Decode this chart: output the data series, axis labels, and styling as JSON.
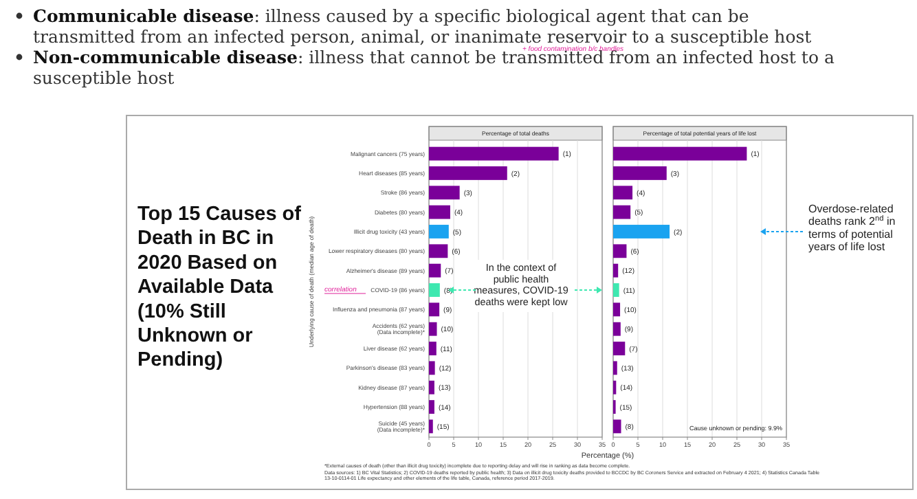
{
  "chart_data": [
    {
      "type": "bar",
      "orientation": "horizontal",
      "title": "Top 15 Causes of Death in BC in 2020 Based on Available Data (10% Still Unknown or Pending)",
      "subtitle": "Percentage of total deaths",
      "xlabel": "Percentage (%)",
      "ylabel": "Underlying cause of death (median age of death)",
      "categories": [
        "Malignant cancers (75 years)",
        "Heart diseases (85 years)",
        "Stroke (86 years)",
        "Diabetes (80 years)",
        "Illicit drug toxicity (43 years)",
        "Lower respiratory diseases (80 years)",
        "Alzheimer's disease (89 years)",
        "COVID-19 (86 years)",
        "Influenza and pneumonia (87 years)",
        "Accidents (62 years)\n(Data incomplete)*",
        "Liver disease (62 years)",
        "Parkinson's disease (83 years)",
        "Kidney disease (87 years)",
        "Hypertension (88 years)",
        "Suicide (45 years)\n(Data incomplete)*"
      ],
      "values": [
        26.2,
        15.8,
        6.2,
        4.3,
        4.0,
        3.8,
        2.4,
        2.2,
        2.1,
        1.6,
        1.5,
        1.2,
        1.1,
        1.1,
        0.8
      ],
      "colors": [
        "#7a0099",
        "#7a0099",
        "#7a0099",
        "#7a0099",
        "#1aa3f0",
        "#7a0099",
        "#7a0099",
        "#3ee8b0",
        "#7a0099",
        "#7a0099",
        "#7a0099",
        "#7a0099",
        "#7a0099",
        "#7a0099",
        "#7a0099"
      ],
      "xlim": [
        0,
        35
      ],
      "xticks": [
        0,
        5,
        10,
        15,
        20,
        25,
        30,
        35
      ],
      "grid": "x",
      "annotations": [
        "Communicable disease: illness caused by a specific biological agent that can be transmitted from an infected person, animal, or inanimate reservoir to a susceptible host",
        "Non-communicable disease: illness that cannot be transmitted from an infected host to a susceptible host",
        "+ food contamination b/c handles",
        "correlation",
        "In the context of public health measures, COVID-19 deaths were kept low",
        "*External causes of death (other than illicit drug toxicity) incomplete due to reporting delay and will rise in ranking as data become complete.",
        "Data sources: 1) BC Vital Statistics; 2) COVID-19 deaths reported by public health; 3) Data on illicit drug toxicity deaths provided to BCCDC by BC Coroners Service and extracted on February 4 2021; 4) Statistics Canada Table 13-10-0114-01 Life expectancy and other elements of the life table, Canada, reference period 2017-2019.",
        {
          "text": "(1)",
          "x": 26.2,
          "y": "Malignant cancers (75 years)"
        },
        {
          "text": "(2)",
          "x": 15.8,
          "y": "Heart diseases (85 years)"
        },
        {
          "text": "(3)",
          "x": 6.2,
          "y": "Stroke (86 years)"
        },
        {
          "text": "(4)",
          "x": 4.3,
          "y": "Diabetes (80 years)"
        },
        {
          "text": "(5)",
          "x": 4.0,
          "y": "Illicit drug toxicity (43 years)"
        },
        {
          "text": "(6)",
          "x": 3.8,
          "y": "Lower respiratory diseases (80 years)"
        },
        {
          "text": "(7)",
          "x": 2.4,
          "y": "Alzheimer's disease (89 years)"
        },
        {
          "text": "(8)",
          "x": 2.2,
          "y": "COVID-19 (86 years)"
        },
        {
          "text": "(9)",
          "x": 2.1,
          "y": "Influenza and pneumonia (87 years)"
        },
        {
          "text": "(10)",
          "x": 1.6,
          "y": "Accidents (62 years)\n(Data incomplete)*"
        },
        {
          "text": "(11)",
          "x": 1.5,
          "y": "Liver disease (62 years)"
        },
        {
          "text": "(12)",
          "x": 1.2,
          "y": "Parkinson's disease (83 years)"
        },
        {
          "text": "(13)",
          "x": 1.1,
          "y": "Kidney disease (87 years)"
        },
        {
          "text": "(14)",
          "x": 1.1,
          "y": "Hypertension (88 years)"
        },
        {
          "text": "(15)",
          "x": 0.8,
          "y": "Suicide (45 years)\n(Data incomplete)*"
        }
      ]
    },
    {
      "type": "bar",
      "orientation": "horizontal",
      "subtitle": "Percentage of total potential years of life lost",
      "tick_labels": "x",
      "categories": [
        "Malignant cancers (75 years)",
        "Heart diseases (85 years)",
        "Stroke (86 years)",
        "Diabetes (80 years)",
        "Illicit drug toxicity (43 years)",
        "Lower respiratory diseases (80 years)",
        "Alzheimer's disease (89 years)",
        "COVID-19 (86 years)",
        "Influenza and pneumonia (87 years)",
        "Accidents (62 years)\n(Data incomplete)*",
        "Liver disease (62 years)",
        "Parkinson's disease (83 years)",
        "Kidney disease (87 years)",
        "Hypertension (88 years)",
        "Suicide (45 years)\n(Data incomplete)*"
      ],
      "values": [
        27.0,
        10.8,
        3.9,
        3.5,
        11.4,
        2.7,
        1.0,
        1.2,
        1.4,
        1.5,
        2.4,
        0.8,
        0.6,
        0.5,
        1.6
      ],
      "colors": [
        "#7a0099",
        "#7a0099",
        "#7a0099",
        "#7a0099",
        "#1aa3f0",
        "#7a0099",
        "#7a0099",
        "#3ee8b0",
        "#7a0099",
        "#7a0099",
        "#7a0099",
        "#7a0099",
        "#7a0099",
        "#7a0099",
        "#7a0099"
      ],
      "xlim": [
        0,
        35
      ],
      "xticks": [
        0,
        5,
        10,
        15,
        20,
        25,
        30,
        35
      ],
      "grid": "x",
      "annotations": [
        "Overdose-related deaths rank 2$^{nd}$ in terms of potential years of life lost",
        "Cause unknown or pending: 9.9%",
        {
          "text": "(1)",
          "x": 27.0,
          "y": "Malignant cancers (75 years)"
        },
        {
          "text": "(3)",
          "x": 10.8,
          "y": "Heart diseases (85 years)"
        },
        {
          "text": "(4)",
          "x": 3.9,
          "y": "Stroke (86 years)"
        },
        {
          "text": "(5)",
          "x": 3.5,
          "y": "Diabetes (80 years)"
        },
        {
          "text": "(2)",
          "x": 11.4,
          "y": "Illicit drug toxicity (43 years)"
        },
        {
          "text": "(6)",
          "x": 2.7,
          "y": "Lower respiratory diseases (80 years)"
        },
        {
          "text": "(12)",
          "x": 1.0,
          "y": "Alzheimer's disease (89 years)"
        },
        {
          "text": "(11)",
          "x": 1.2,
          "y": "COVID-19 (86 years)"
        },
        {
          "text": "(10)",
          "x": 1.4,
          "y": "Influenza and pneumonia (87 years)"
        },
        {
          "text": "(9)",
          "x": 1.5,
          "y": "Accidents (62 years)\n(Data incomplete)*"
        },
        {
          "text": "(7)",
          "x": 2.4,
          "y": "Liver disease (62 years)"
        },
        {
          "text": "(13)",
          "x": 0.8,
          "y": "Parkinson's disease (83 years)"
        },
        {
          "text": "(14)",
          "x": 0.6,
          "y": "Kidney disease (87 years)"
        },
        {
          "text": "(15)",
          "x": 0.5,
          "y": "Hypertension (88 years)"
        },
        {
          "text": "(8)",
          "x": 1.6,
          "y": "Suicide (45 years)\n(Data incomplete)*"
        }
      ]
    }
  ]
}
